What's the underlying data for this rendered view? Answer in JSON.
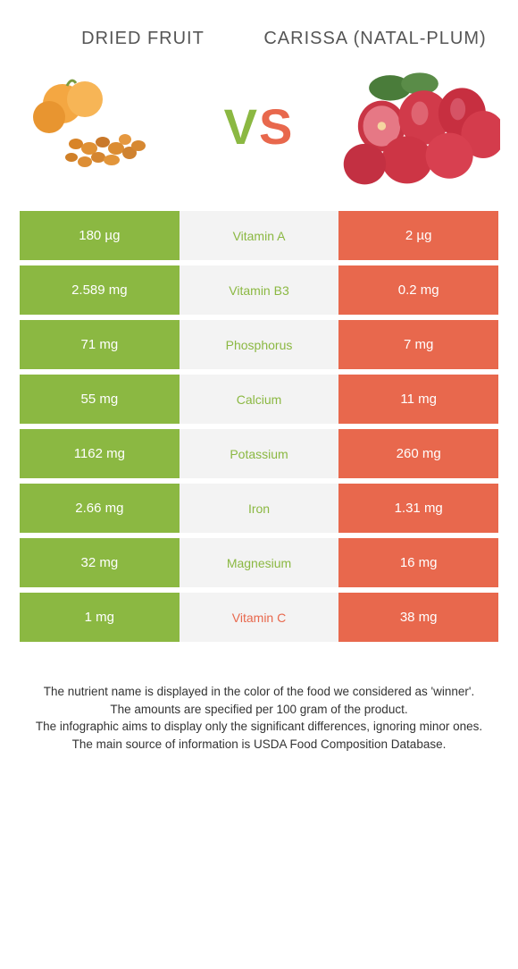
{
  "header": {
    "left_title": "DRIED FRUIT",
    "right_title": "CARISSA (NATAL-PLUM)",
    "vs_v": "V",
    "vs_s": "S"
  },
  "colors": {
    "green": "#8bb842",
    "orange": "#e8684d",
    "mid_bg": "#f3f3f3",
    "text_dark": "#555555",
    "footer_text": "#333333"
  },
  "rows": [
    {
      "left": "180 µg",
      "mid": "Vitamin A",
      "right": "2 µg",
      "winner": "left"
    },
    {
      "left": "2.589 mg",
      "mid": "Vitamin B3",
      "right": "0.2 mg",
      "winner": "left"
    },
    {
      "left": "71 mg",
      "mid": "Phosphorus",
      "right": "7 mg",
      "winner": "left"
    },
    {
      "left": "55 mg",
      "mid": "Calcium",
      "right": "11 mg",
      "winner": "left"
    },
    {
      "left": "1162 mg",
      "mid": "Potassium",
      "right": "260 mg",
      "winner": "left"
    },
    {
      "left": "2.66 mg",
      "mid": "Iron",
      "right": "1.31 mg",
      "winner": "left"
    },
    {
      "left": "32 mg",
      "mid": "Magnesium",
      "right": "16 mg",
      "winner": "left"
    },
    {
      "left": "1 mg",
      "mid": "Vitamin C",
      "right": "38 mg",
      "winner": "right"
    }
  ],
  "footer": {
    "line1": "The nutrient name is displayed in the color of the food we considered as 'winner'.",
    "line2": "The amounts are specified per 100 gram of the product.",
    "line3": "The infographic aims to display only the significant differences, ignoring minor ones.",
    "line4": "The main source of information is USDA Food Composition Database."
  }
}
